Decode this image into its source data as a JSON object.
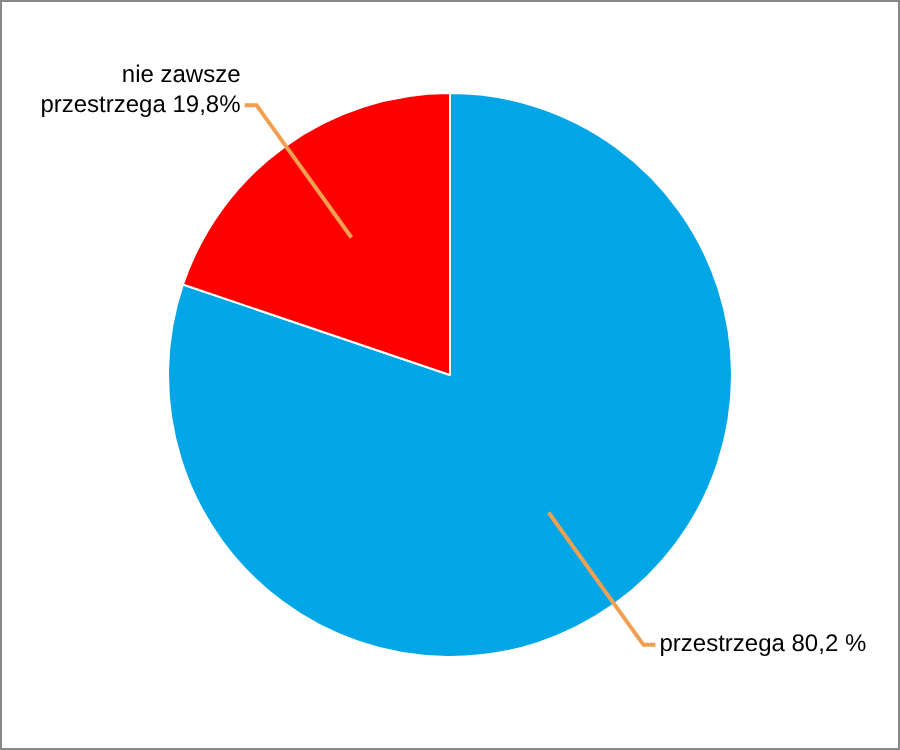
{
  "chart_data": {
    "type": "pie",
    "categories": [
      "przestrzega",
      "nie zawsze przestrzega"
    ],
    "values": [
      80.2,
      19.8
    ],
    "colors": [
      "#00a6e6",
      "#ff0000"
    ],
    "value_labels": [
      "80,2 %",
      "19,8%"
    ],
    "legend": false
  }
}
